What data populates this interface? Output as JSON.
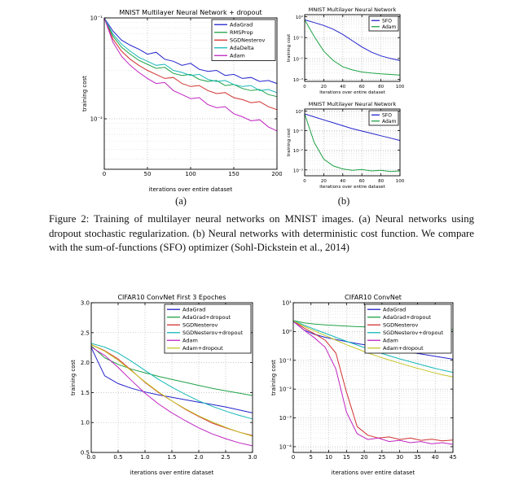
{
  "figure": {
    "caption": "Figure 2: Training of multilayer neural networks on MNIST images. (a) Neural networks using dropout stochastic regularization. (b) Neural networks with deterministic cost function. We compare with the sum-of-functions (SFO) optimizer (Sohl-Dickstein et al., 2014)",
    "label_a": "(a)",
    "label_b": "(b)"
  },
  "chart_data": [
    {
      "el": "chart_a",
      "type": "line",
      "title": "MNIST Multilayer Neural Network + dropout",
      "xlabel": "iterations over entire dataset",
      "ylabel": "training cost",
      "xlim": [
        0,
        200
      ],
      "xticks": [
        0,
        50,
        100,
        150,
        200
      ],
      "xtick_labels": [
        "0",
        "50",
        "100",
        "150",
        "200"
      ],
      "yscale": "log",
      "ylim": [
        -2.5,
        -1.0
      ],
      "yticks": [
        -1.0,
        -2.0
      ],
      "ytick_labels": [
        "10⁻¹",
        "10⁻²"
      ],
      "legend_pos": "upper right",
      "m": [
        30,
        16,
        6,
        30
      ],
      "legend": {
        "w": 78,
        "rh": 9.5,
        "sample": 16
      },
      "x": [
        0,
        10,
        20,
        30,
        40,
        50,
        60,
        70,
        80,
        90,
        100,
        110,
        120,
        130,
        140,
        150,
        160,
        170,
        180,
        190,
        200
      ],
      "series": [
        {
          "name": "AdaGrad",
          "color": "#2222cc",
          "log10_y": [
            -1.0,
            -1.13,
            -1.22,
            -1.27,
            -1.31,
            -1.36,
            -1.34,
            -1.41,
            -1.43,
            -1.47,
            -1.45,
            -1.51,
            -1.53,
            -1.52,
            -1.57,
            -1.56,
            -1.6,
            -1.59,
            -1.63,
            -1.62,
            -1.65
          ]
        },
        {
          "name": "RMSProp",
          "color": "#1fa246",
          "log10_y": [
            -1.0,
            -1.18,
            -1.29,
            -1.36,
            -1.42,
            -1.46,
            -1.5,
            -1.49,
            -1.55,
            -1.57,
            -1.56,
            -1.61,
            -1.63,
            -1.62,
            -1.67,
            -1.66,
            -1.7,
            -1.72,
            -1.71,
            -1.76,
            -1.78
          ]
        },
        {
          "name": "SGDNesterov",
          "color": "#d0322f",
          "log10_y": [
            -1.0,
            -1.21,
            -1.33,
            -1.41,
            -1.47,
            -1.52,
            -1.56,
            -1.6,
            -1.59,
            -1.65,
            -1.68,
            -1.67,
            -1.72,
            -1.75,
            -1.74,
            -1.79,
            -1.81,
            -1.84,
            -1.83,
            -1.88,
            -1.91
          ]
        },
        {
          "name": "AdaDelta",
          "color": "#17b8b8",
          "log10_y": [
            -1.0,
            -1.16,
            -1.26,
            -1.33,
            -1.39,
            -1.43,
            -1.47,
            -1.46,
            -1.52,
            -1.54,
            -1.57,
            -1.56,
            -1.61,
            -1.63,
            -1.62,
            -1.66,
            -1.68,
            -1.67,
            -1.72,
            -1.71,
            -1.74
          ]
        },
        {
          "name": "Adam",
          "color": "#c024c0",
          "log10_y": [
            -1.0,
            -1.24,
            -1.38,
            -1.47,
            -1.54,
            -1.6,
            -1.65,
            -1.64,
            -1.72,
            -1.76,
            -1.8,
            -1.79,
            -1.86,
            -1.89,
            -1.88,
            -1.95,
            -1.98,
            -2.02,
            -2.01,
            -2.08,
            -2.12
          ]
        }
      ]
    },
    {
      "el": "chart_b1",
      "type": "line",
      "title": "MNIST Multilayer Neural Network",
      "xlabel": "iterations over entire dataset",
      "ylabel": "training cost",
      "xlim": [
        0,
        100
      ],
      "xticks": [
        0,
        20,
        40,
        60,
        80,
        100
      ],
      "xtick_labels": [
        "0",
        "20",
        "40",
        "60",
        "80",
        "100"
      ],
      "yscale": "log",
      "ylim": [
        -3.1,
        0.1
      ],
      "yticks": [
        0,
        -1,
        -2,
        -3
      ],
      "ytick_labels": [
        "10⁰",
        "10⁻¹",
        "10⁻²",
        "10⁻³"
      ],
      "legend_pos": "upper right",
      "m": [
        26,
        12,
        5,
        18
      ],
      "legend": {
        "w": 36,
        "rh": 7.5,
        "sample": 10
      },
      "x": [
        0,
        10,
        20,
        30,
        40,
        50,
        60,
        70,
        80,
        90,
        100
      ],
      "series": [
        {
          "name": "SFO",
          "color": "#2222cc",
          "log10_y": [
            -0.15,
            -0.28,
            -0.42,
            -0.6,
            -0.85,
            -1.15,
            -1.45,
            -1.7,
            -1.88,
            -2.0,
            -2.1
          ]
        },
        {
          "name": "Adam",
          "color": "#1fa246",
          "log10_y": [
            -0.15,
            -0.95,
            -1.65,
            -2.1,
            -2.4,
            -2.55,
            -2.65,
            -2.7,
            -2.74,
            -2.77,
            -2.8
          ]
        }
      ]
    },
    {
      "el": "chart_b2",
      "type": "line",
      "title": "MNIST Multilayer Neural Network",
      "xlabel": "iterations over entire dataset",
      "ylabel": "training cost",
      "xlim": [
        0,
        100
      ],
      "xticks": [
        0,
        20,
        40,
        60,
        80,
        100
      ],
      "xtick_labels": [
        "0",
        "20",
        "40",
        "60",
        "80",
        "100"
      ],
      "yscale": "log",
      "ylim": [
        -3.3,
        0.1
      ],
      "yticks": [
        0,
        -1,
        -2,
        -3
      ],
      "ytick_labels": [
        "10⁰",
        "10⁻¹",
        "10⁻²",
        "10⁻³"
      ],
      "legend_pos": "upper right",
      "m": [
        26,
        12,
        5,
        18
      ],
      "legend": {
        "w": 36,
        "rh": 7.5,
        "sample": 10
      },
      "x": [
        0,
        10,
        20,
        30,
        40,
        50,
        60,
        70,
        80,
        90,
        100
      ],
      "series": [
        {
          "name": "SFO",
          "color": "#2222cc",
          "log10_y": [
            -0.15,
            -0.3,
            -0.45,
            -0.6,
            -0.75,
            -0.9,
            -1.02,
            -1.14,
            -1.26,
            -1.38,
            -1.5
          ]
        },
        {
          "name": "Adam",
          "color": "#1fa246",
          "log10_y": [
            -0.15,
            -1.6,
            -2.45,
            -2.8,
            -2.95,
            -3.02,
            -2.98,
            -3.05,
            -3.02,
            -3.08,
            -3.05
          ]
        }
      ]
    },
    {
      "el": "chart_c",
      "type": "line",
      "title": "CIFAR10 ConvNet First 3 Epoches",
      "xlabel": "iterations over entire dataset",
      "ylabel": "training cost",
      "xlim": [
        0,
        3
      ],
      "xticks": [
        0,
        0.5,
        1.0,
        1.5,
        2.0,
        2.5,
        3.0
      ],
      "xtick_labels": [
        "0.0",
        "0.5",
        "1.0",
        "1.5",
        "2.0",
        "2.5",
        "3.0"
      ],
      "yscale": "linear",
      "ylim": [
        0.5,
        3.0
      ],
      "yticks": [
        0.5,
        1.0,
        1.5,
        2.0,
        2.5,
        3.0
      ],
      "ytick_labels": [
        "0.5",
        "1.0",
        "1.5",
        "2.0",
        "2.5",
        "3.0"
      ],
      "legend_pos": "upper right",
      "m": [
        28,
        16,
        6,
        30
      ],
      "legend": {
        "w": 106,
        "rh": 9.5,
        "sample": 16
      },
      "x": [
        0,
        0.25,
        0.5,
        0.75,
        1.0,
        1.25,
        1.5,
        1.75,
        2.0,
        2.25,
        2.5,
        2.75,
        3.0
      ],
      "series": [
        {
          "name": "AdaGrad",
          "color": "#2222cc",
          "y": [
            2.25,
            1.78,
            1.65,
            1.57,
            1.51,
            1.46,
            1.42,
            1.38,
            1.34,
            1.3,
            1.26,
            1.21,
            1.16
          ]
        },
        {
          "name": "AdaGrad+dropout",
          "color": "#1fa246",
          "y": [
            2.28,
            2.08,
            1.97,
            1.89,
            1.83,
            1.77,
            1.72,
            1.67,
            1.62,
            1.57,
            1.53,
            1.49,
            1.45
          ]
        },
        {
          "name": "SGDNesterov",
          "color": "#d0322f",
          "y": [
            2.3,
            2.2,
            2.06,
            1.87,
            1.67,
            1.5,
            1.36,
            1.22,
            1.1,
            0.99,
            0.91,
            0.84,
            0.78
          ]
        },
        {
          "name": "SGDNesterov+dropout",
          "color": "#17b8b8",
          "y": [
            2.32,
            2.26,
            2.16,
            2.02,
            1.87,
            1.72,
            1.59,
            1.47,
            1.36,
            1.27,
            1.19,
            1.12,
            1.06
          ]
        },
        {
          "name": "Adam",
          "color": "#c024c0",
          "y": [
            2.26,
            2.12,
            1.92,
            1.7,
            1.49,
            1.31,
            1.16,
            1.03,
            0.91,
            0.81,
            0.73,
            0.66,
            0.61
          ]
        },
        {
          "name": "Adam+dropout",
          "color": "#c6c62a",
          "y": [
            2.3,
            2.19,
            2.04,
            1.86,
            1.68,
            1.51,
            1.36,
            1.23,
            1.11,
            1.01,
            0.92,
            0.84,
            0.77
          ]
        }
      ]
    },
    {
      "el": "chart_d",
      "type": "line",
      "title": "CIFAR10 ConvNet",
      "xlabel": "iterations over entire dataset",
      "ylabel": "training cost",
      "xlim": [
        0,
        45
      ],
      "xticks": [
        0,
        5,
        10,
        15,
        20,
        25,
        30,
        35,
        40,
        45
      ],
      "xtick_labels": [
        "0",
        "5",
        "10",
        "15",
        "20",
        "25",
        "30",
        "35",
        "40",
        "45"
      ],
      "yscale": "log",
      "ylim": [
        -4.2,
        1.0
      ],
      "yticks": [
        1,
        0,
        -1,
        -2,
        -3,
        -4
      ],
      "ytick_labels": [
        "10¹",
        "10⁰",
        "10⁻¹",
        "10⁻²",
        "10⁻³",
        "10⁻⁴"
      ],
      "legend_pos": "upper right",
      "m": [
        30,
        16,
        6,
        30
      ],
      "legend": {
        "w": 106,
        "rh": 9.5,
        "sample": 16
      },
      "x": [
        0,
        3,
        6,
        9,
        12,
        15,
        18,
        21,
        24,
        27,
        30,
        33,
        36,
        39,
        42,
        45
      ],
      "series": [
        {
          "name": "AdaGrad",
          "color": "#2222cc",
          "log10_y": [
            0.35,
            0.05,
            -0.1,
            -0.2,
            -0.28,
            -0.35,
            -0.42,
            -0.48,
            -0.54,
            -0.6,
            -0.66,
            -0.72,
            -0.78,
            -0.84,
            -0.9,
            -0.96
          ]
        },
        {
          "name": "AdaGrad+dropout",
          "color": "#1fa246",
          "log10_y": [
            0.38,
            0.3,
            0.26,
            0.23,
            0.21,
            0.19,
            0.17,
            0.16,
            0.14,
            0.13,
            0.12,
            0.11,
            0.1,
            0.09,
            0.08,
            0.07
          ]
        },
        {
          "name": "SGDNesterov",
          "color": "#d0322f",
          "log10_y": [
            0.37,
            0.12,
            -0.08,
            -0.3,
            -0.75,
            -2.1,
            -3.3,
            -3.6,
            -3.7,
            -3.66,
            -3.75,
            -3.7,
            -3.78,
            -3.74,
            -3.8,
            -3.77
          ]
        },
        {
          "name": "SGDNesterov+dropout",
          "color": "#17b8b8",
          "log10_y": [
            0.38,
            0.22,
            0.08,
            -0.06,
            -0.2,
            -0.34,
            -0.47,
            -0.6,
            -0.72,
            -0.84,
            -0.95,
            -1.05,
            -1.15,
            -1.25,
            -1.34,
            -1.42
          ]
        },
        {
          "name": "Adam",
          "color": "#c024c0",
          "log10_y": [
            0.36,
            0.05,
            -0.22,
            -0.55,
            -1.3,
            -2.8,
            -3.55,
            -3.75,
            -3.7,
            -3.82,
            -3.78,
            -3.86,
            -3.82,
            -3.9,
            -3.86,
            -3.92
          ]
        },
        {
          "name": "Adam+dropout",
          "color": "#c6c62a",
          "log10_y": [
            0.37,
            0.18,
            0.02,
            -0.14,
            -0.3,
            -0.46,
            -0.6,
            -0.74,
            -0.87,
            -0.99,
            -1.1,
            -1.21,
            -1.31,
            -1.41,
            -1.5,
            -1.58
          ]
        }
      ]
    }
  ]
}
